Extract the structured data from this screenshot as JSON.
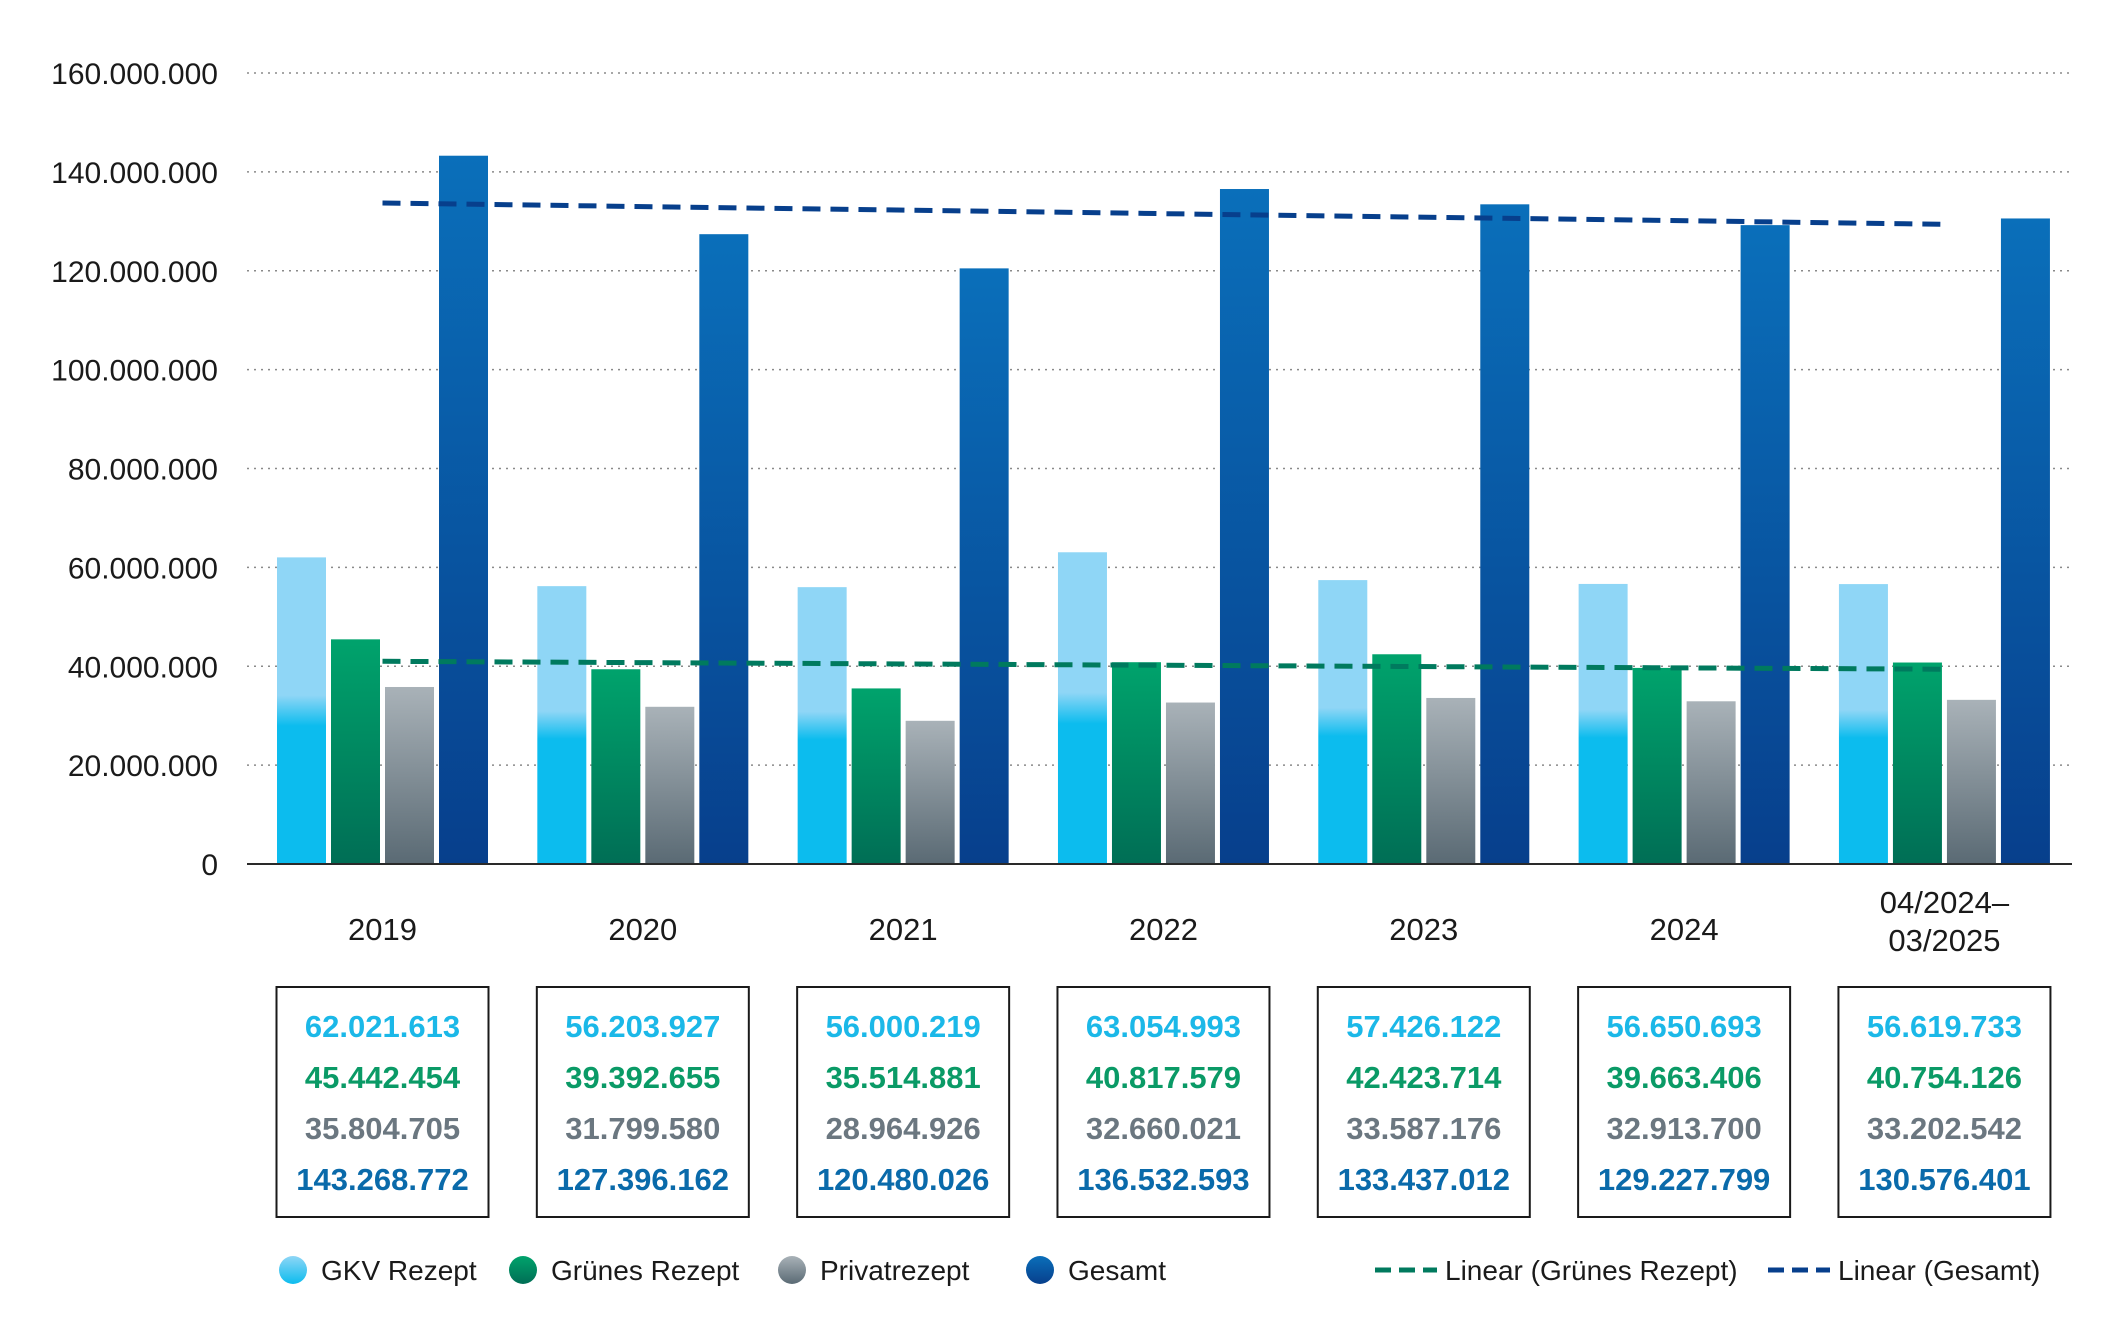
{
  "chart_data": {
    "type": "bar",
    "title": "",
    "xlabel": "",
    "ylabel": "",
    "ylim": [
      0,
      160000000
    ],
    "y_ticks": [
      "0",
      "20.000.000",
      "40.000.000",
      "60.000.000",
      "80.000.000",
      "100.000.000",
      "120.000.000",
      "140.000.000",
      "160.000.000"
    ],
    "y_tick_values": [
      0,
      20000000,
      40000000,
      60000000,
      80000000,
      100000000,
      120000000,
      140000000,
      160000000
    ],
    "grid": "horizontal dotted",
    "legend_position": "bottom",
    "categories": [
      "2019",
      "2020",
      "2021",
      "2022",
      "2023",
      "2024",
      "04/2024–03/2025"
    ],
    "category_lines": [
      [
        "2019"
      ],
      [
        "2020"
      ],
      [
        "2021"
      ],
      [
        "2022"
      ],
      [
        "2023"
      ],
      [
        "2024"
      ],
      [
        "04/2024–",
        "03/2025"
      ]
    ],
    "series": [
      {
        "name": "GKV Rezept",
        "color": "#0cbcee",
        "color_light": "#8fd6f6",
        "values": [
          62021613,
          56203927,
          56000219,
          63054993,
          57426122,
          56650693,
          56619733
        ],
        "labels": [
          "62.021.613",
          "56.203.927",
          "56.000.219",
          "63.054.993",
          "57.426.122",
          "56.650.693",
          "56.619.733"
        ]
      },
      {
        "name": "Grünes Rezept",
        "color": "#00a36c",
        "color_dark": "#006e55",
        "values": [
          45442454,
          39392655,
          35514881,
          40817579,
          42423714,
          39663406,
          40754126
        ],
        "labels": [
          "45.442.454",
          "39.392.655",
          "35.514.881",
          "40.817.579",
          "42.423.714",
          "39.663.406",
          "40.754.126"
        ]
      },
      {
        "name": "Privatrezept",
        "color": "#7b8790",
        "color_light": "#a9b2b8",
        "color_dark": "#5a6a74",
        "values": [
          35804705,
          31799580,
          28964926,
          32660021,
          33587176,
          32913700,
          33202542
        ],
        "labels": [
          "35.804.705",
          "31.799.580",
          "28.964.926",
          "32.660.021",
          "33.587.176",
          "32.913.700",
          "33.202.542"
        ]
      },
      {
        "name": "Gesamt",
        "color": "#0a6fba",
        "color_dark": "#073f8c",
        "values": [
          143268772,
          127396162,
          120480026,
          136532593,
          133437012,
          129227799,
          130576401
        ],
        "labels": [
          "143.268.772",
          "127.396.162",
          "120.480.026",
          "136.532.593",
          "133.437.012",
          "129.227.799",
          "130.576.401"
        ]
      }
    ],
    "trendlines": [
      {
        "name": "Linear (Grünes Rezept)",
        "of_series": "Grünes Rezept",
        "style": "dashed",
        "color": "#007a5e",
        "start_value": 41000000,
        "end_value": 39400000
      },
      {
        "name": "Linear (Gesamt)",
        "of_series": "Gesamt",
        "style": "dashed",
        "color": "#073f8c",
        "start_value": 133700000,
        "end_value": 129400000
      }
    ],
    "value_label_colors": [
      "#1bb8e8",
      "#0a9a66",
      "#6b7780",
      "#0a6aaa"
    ]
  }
}
